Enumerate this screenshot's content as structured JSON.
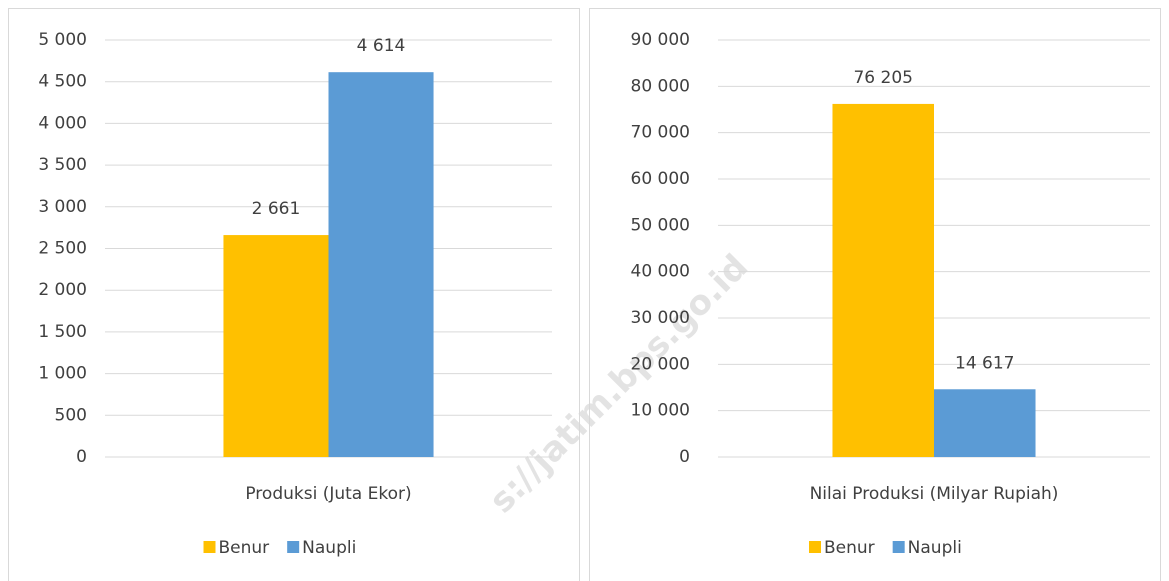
{
  "chart_data": [
    {
      "type": "bar",
      "categories": [
        "Produksi (Juta Ekor)"
      ],
      "series": [
        {
          "name": "Benur",
          "color": "#ffc000",
          "values": [
            2661
          ],
          "value_labels": [
            "2 661"
          ]
        },
        {
          "name": "Naupli",
          "color": "#5b9bd5",
          "values": [
            4614
          ],
          "value_labels": [
            "4 614"
          ]
        }
      ],
      "ylim": [
        0,
        5000
      ],
      "yticks": [
        0,
        500,
        {
          "value": 1000,
          "label": "1 000"
        },
        {
          "value": 1500,
          "label": "1 500"
        },
        {
          "value": 2000,
          "label": "2 000"
        },
        {
          "value": 2500,
          "label": "2 500"
        },
        {
          "value": 3000,
          "label": "3 000"
        },
        {
          "value": 3500,
          "label": "3 500"
        },
        {
          "value": 4000,
          "label": "4 000"
        },
        {
          "value": 4500,
          "label": "4 500"
        },
        {
          "value": 5000,
          "label": "5 000"
        }
      ],
      "grid": true,
      "legend": "bottom"
    },
    {
      "type": "bar",
      "categories": [
        "Nilai Produksi (Milyar Rupiah)"
      ],
      "series": [
        {
          "name": "Benur",
          "color": "#ffc000",
          "values": [
            76205
          ],
          "value_labels": [
            "76 205"
          ]
        },
        {
          "name": "Naupli",
          "color": "#5b9bd5",
          "values": [
            14617
          ],
          "value_labels": [
            "14 617"
          ]
        }
      ],
      "ylim": [
        0,
        90000
      ],
      "yticks": [
        0,
        {
          "value": 10000,
          "label": "10 000"
        },
        {
          "value": 20000,
          "label": "20 000"
        },
        {
          "value": 30000,
          "label": "30 000"
        },
        {
          "value": 40000,
          "label": "40 000"
        },
        {
          "value": 50000,
          "label": "50 000"
        },
        {
          "value": 60000,
          "label": "60 000"
        },
        {
          "value": 70000,
          "label": "70 000"
        },
        {
          "value": 80000,
          "label": "80 000"
        },
        {
          "value": 90000,
          "label": "90 000"
        }
      ],
      "grid": true,
      "legend": "bottom"
    }
  ],
  "watermark": "s://jatim.bps.go.id"
}
